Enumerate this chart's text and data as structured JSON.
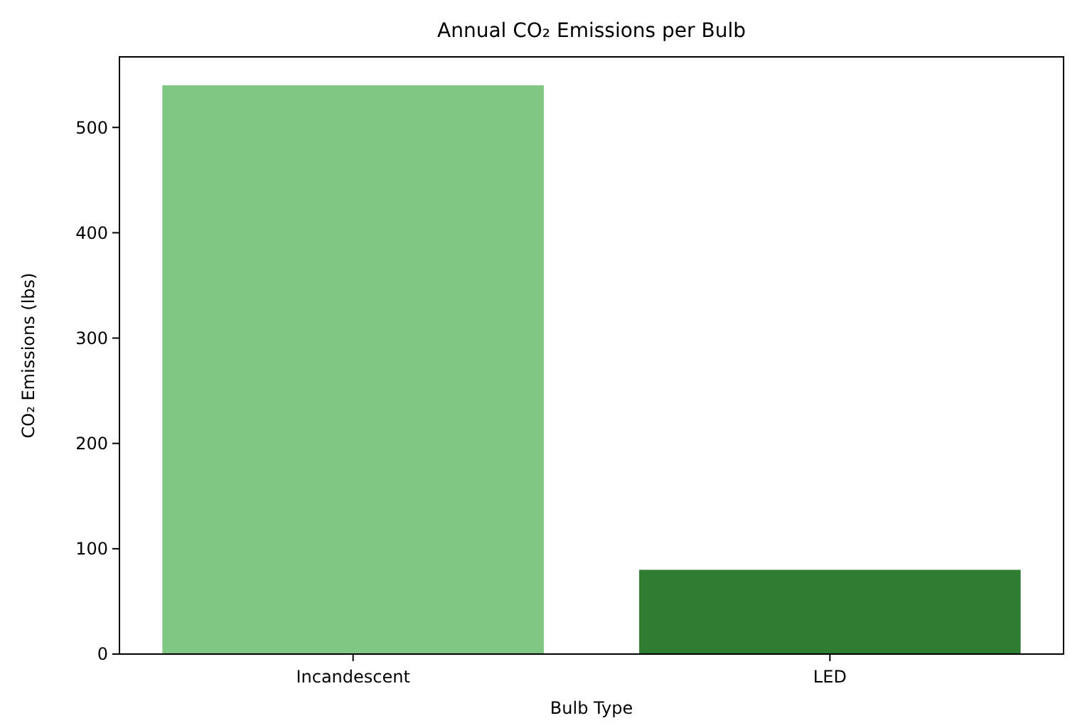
{
  "chart_data": {
    "type": "bar",
    "title": "Annual CO₂ Emissions per Bulb",
    "xlabel": "Bulb Type",
    "ylabel": "CO₂ Emissions (lbs)",
    "categories": [
      "Incandescent",
      "LED"
    ],
    "values": [
      540,
      80
    ],
    "colors": [
      "#81c784",
      "#2e7d32"
    ],
    "ylim": [
      0,
      567
    ],
    "yticks": [
      0,
      100,
      200,
      300,
      400,
      500
    ],
    "grid": false
  }
}
